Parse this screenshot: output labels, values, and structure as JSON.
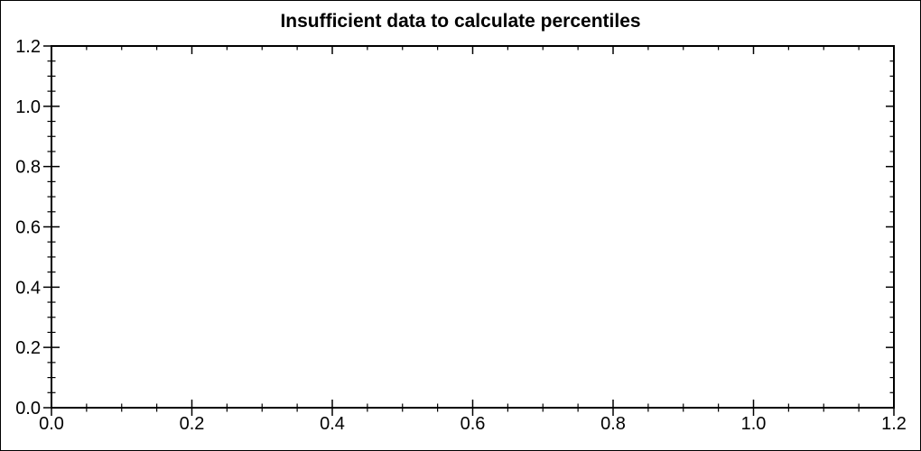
{
  "chart_data": {
    "type": "scatter",
    "title": "Insufficient data to calculate percentiles",
    "subtitle": "",
    "xlabel": "",
    "ylabel": "",
    "xlim": [
      0,
      1.2
    ],
    "ylim": [
      0,
      1.2
    ],
    "x_major_ticks": [
      0,
      0.2,
      0.4,
      0.6,
      0.8,
      1.0,
      1.2
    ],
    "y_major_ticks": [
      0,
      0.2,
      0.4,
      0.6,
      0.8,
      1.0,
      1.2
    ],
    "x_tick_labels": [
      "0.0",
      "0.2",
      "0.4",
      "0.6",
      "0.8",
      "1.0",
      "1.2"
    ],
    "y_tick_labels": [
      "0.0",
      "0.2",
      "0.4",
      "0.6",
      "0.8",
      "1.0",
      "1.2"
    ],
    "minor_ticks_between_majors": 3,
    "series": [],
    "grid": false,
    "frame": "box",
    "legend": null,
    "colors": {
      "axis": "#000000",
      "text": "#000000",
      "background": "#ffffff",
      "border": "#000000"
    }
  }
}
